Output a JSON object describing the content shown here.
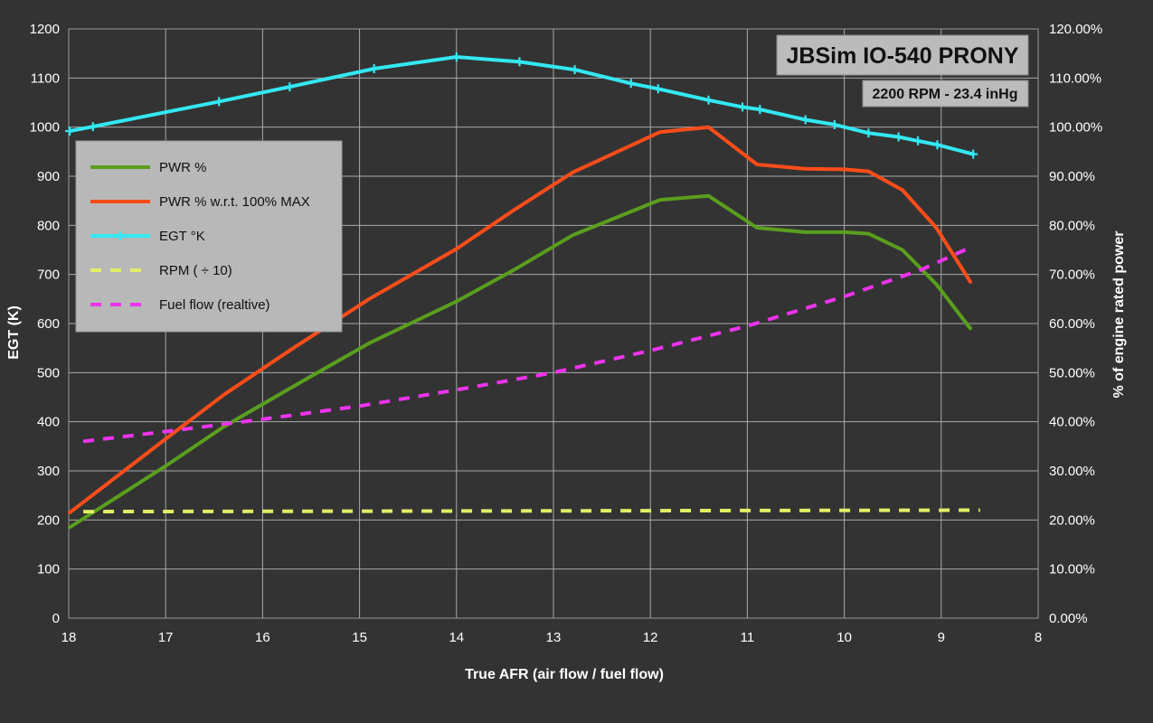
{
  "chart_data": {
    "type": "line",
    "title": "JBSim IO-540 PRONY",
    "subtitle": "2200 RPM - 23.4 inHg",
    "xlabel": "True AFR (air flow / fuel flow)",
    "ylabel": "EGT (K)",
    "y2label": "% of engine rated power",
    "x_reversed": true,
    "xlim": [
      18,
      8
    ],
    "ylim": [
      0,
      1200
    ],
    "y2lim": [
      0,
      1.2
    ],
    "x_ticks": [
      "18",
      "17",
      "16",
      "15",
      "14",
      "13",
      "12",
      "11",
      "10",
      "9",
      "8"
    ],
    "y_ticks": [
      "0",
      "100",
      "200",
      "300",
      "400",
      "500",
      "600",
      "700",
      "800",
      "900",
      "1000",
      "1100",
      "1200"
    ],
    "y2_ticks": [
      "0.00%",
      "10.00%",
      "20.00%",
      "30.00%",
      "40.00%",
      "50.00%",
      "60.00%",
      "70.00%",
      "80.00%",
      "90.00%",
      "100.00%",
      "110.00%",
      "120.00%"
    ],
    "grid": true,
    "legend_position": "top-left",
    "series": [
      {
        "name": "PWR %",
        "axis": "right",
        "color": "#5a9e1e",
        "dash": false,
        "markers": false,
        "points": [
          [
            17.99,
            0.185
          ],
          [
            17.0,
            0.31
          ],
          [
            16.4,
            0.39
          ],
          [
            15.7,
            0.47
          ],
          [
            14.9,
            0.56
          ],
          [
            14.0,
            0.645
          ],
          [
            13.4,
            0.71
          ],
          [
            12.8,
            0.78
          ],
          [
            11.9,
            0.852
          ],
          [
            11.4,
            0.86
          ],
          [
            10.9,
            0.795
          ],
          [
            10.4,
            0.786
          ],
          [
            10.0,
            0.786
          ],
          [
            9.75,
            0.783
          ],
          [
            9.4,
            0.75
          ],
          [
            9.05,
            0.68
          ],
          [
            8.7,
            0.59
          ]
        ]
      },
      {
        "name": "PWR % w.r.t. 100% MAX",
        "axis": "right",
        "color": "#ff4d1a",
        "dash": false,
        "markers": false,
        "points": [
          [
            17.99,
            0.215
          ],
          [
            17.0,
            0.365
          ],
          [
            16.4,
            0.455
          ],
          [
            15.7,
            0.548
          ],
          [
            14.9,
            0.65
          ],
          [
            14.0,
            0.752
          ],
          [
            13.4,
            0.832
          ],
          [
            12.8,
            0.908
          ],
          [
            11.9,
            0.99
          ],
          [
            11.4,
            1.0
          ],
          [
            10.9,
            0.924
          ],
          [
            10.4,
            0.915
          ],
          [
            10.0,
            0.914
          ],
          [
            9.75,
            0.91
          ],
          [
            9.4,
            0.872
          ],
          [
            9.05,
            0.795
          ],
          [
            8.7,
            0.685
          ]
        ]
      },
      {
        "name": "EGT °K",
        "axis": "left",
        "color": "#33e8f2",
        "dash": false,
        "markers": true,
        "points": [
          [
            17.99,
            992
          ],
          [
            17.75,
            1001
          ],
          [
            16.45,
            1052
          ],
          [
            15.72,
            1082
          ],
          [
            14.85,
            1119
          ],
          [
            14.0,
            1143
          ],
          [
            13.35,
            1133
          ],
          [
            12.78,
            1117
          ],
          [
            12.2,
            1089
          ],
          [
            11.92,
            1078
          ],
          [
            11.4,
            1055
          ],
          [
            11.05,
            1041
          ],
          [
            10.87,
            1036
          ],
          [
            10.4,
            1015
          ],
          [
            10.1,
            1005
          ],
          [
            9.75,
            988
          ],
          [
            9.44,
            980
          ],
          [
            9.24,
            972
          ],
          [
            9.04,
            964
          ],
          [
            8.67,
            945
          ]
        ]
      },
      {
        "name": "RPM ( ÷ 10)",
        "axis": "left",
        "color": "#e2ee66",
        "dash": true,
        "markers": false,
        "points": [
          [
            17.85,
            217
          ],
          [
            8.6,
            220
          ]
        ]
      },
      {
        "name": "Fuel flow (realtive)",
        "axis": "right",
        "color": "#ee33ee",
        "dash": true,
        "markers": false,
        "points": [
          [
            17.85,
            0.36
          ],
          [
            17.0,
            0.38
          ],
          [
            16.0,
            0.405
          ],
          [
            15.0,
            0.432
          ],
          [
            14.0,
            0.465
          ],
          [
            13.0,
            0.5
          ],
          [
            12.0,
            0.545
          ],
          [
            11.0,
            0.595
          ],
          [
            10.0,
            0.655
          ],
          [
            9.2,
            0.71
          ],
          [
            8.7,
            0.755
          ]
        ]
      }
    ]
  }
}
